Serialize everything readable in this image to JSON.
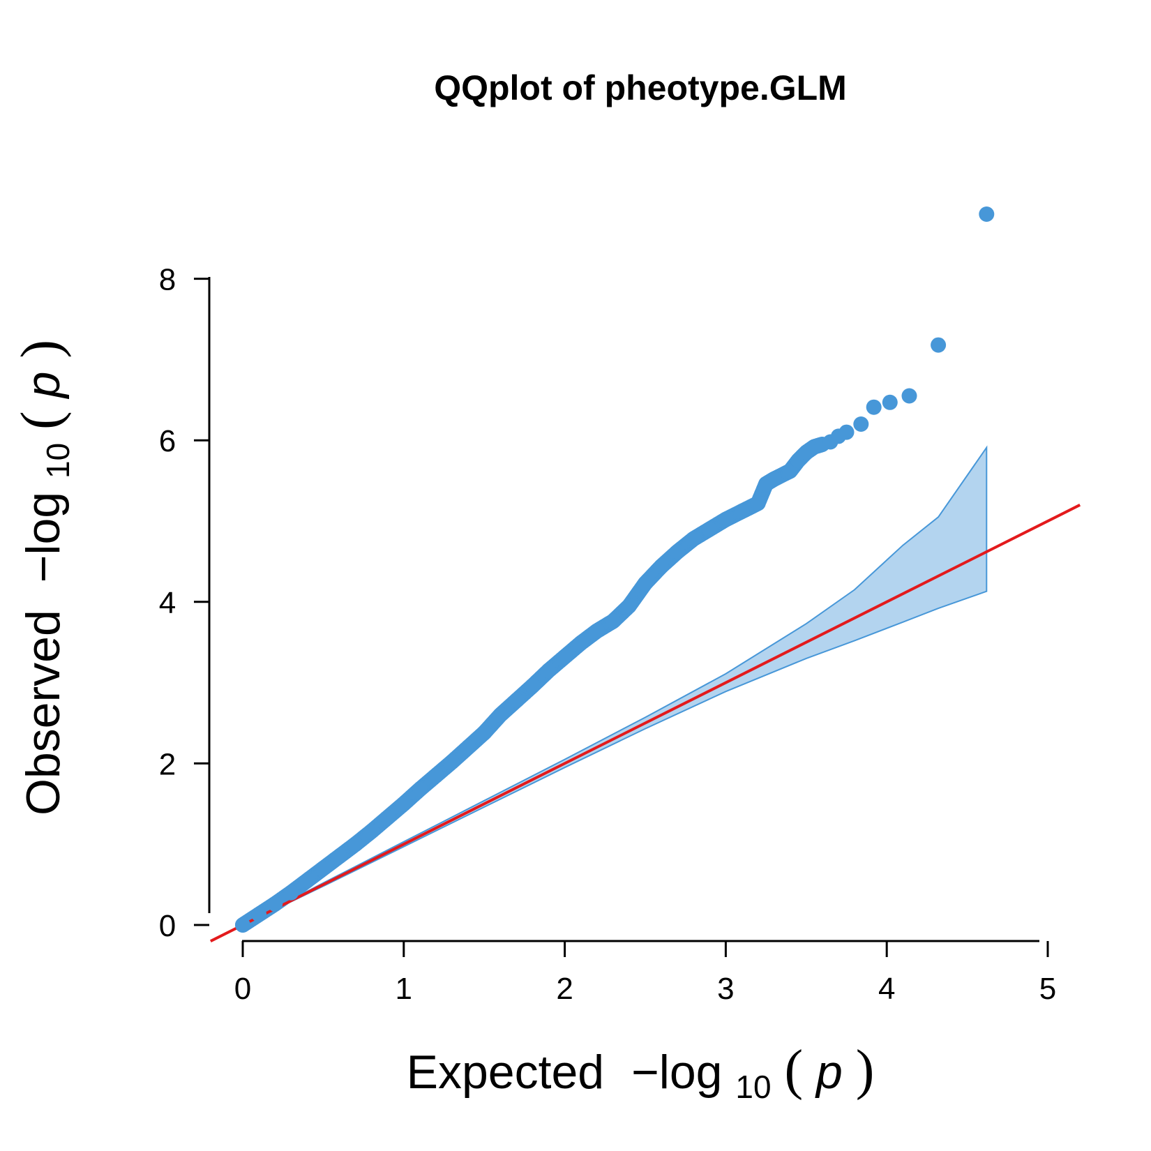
{
  "chart_data": {
    "type": "scatter",
    "title": "QQplot of pheotype.GLM",
    "xlabel": {
      "prefix": "Expected",
      "fn": "−log",
      "sub": "10",
      "open": "(",
      "var": "p",
      "close": ")"
    },
    "ylabel": {
      "prefix": "Observed",
      "fn": "−log",
      "sub": "10",
      "open": "(",
      "var": "p",
      "close": ")"
    },
    "xlim": [
      0,
      5
    ],
    "ylim": [
      0,
      8
    ],
    "xticks": [
      "0",
      "1",
      "2",
      "3",
      "4",
      "5"
    ],
    "yticks": [
      "0",
      "2",
      "4",
      "6",
      "8"
    ],
    "colors": {
      "points": "#4797D8",
      "band_fill": "#B3D4EF",
      "band_stroke": "#4797D8",
      "reference": "#E31A1C"
    },
    "reference_line": {
      "slope": 1,
      "intercept": 0
    },
    "confidence_band": {
      "x": [
        0,
        0.5,
        1.0,
        1.5,
        2.0,
        2.5,
        3.0,
        3.5,
        3.8,
        4.1,
        4.32,
        4.62
      ],
      "upper": [
        0,
        0.52,
        1.03,
        1.54,
        2.05,
        2.57,
        3.11,
        3.73,
        4.15,
        4.7,
        5.05,
        5.91
      ],
      "lower": [
        0,
        0.48,
        0.97,
        1.46,
        1.95,
        2.43,
        2.89,
        3.3,
        3.52,
        3.75,
        3.92,
        4.13
      ]
    },
    "points": {
      "x": [
        0.0,
        0.1,
        0.2,
        0.3,
        0.4,
        0.5,
        0.6,
        0.7,
        0.8,
        0.9,
        1.0,
        1.1,
        1.2,
        1.3,
        1.4,
        1.5,
        1.6,
        1.7,
        1.8,
        1.9,
        2.0,
        2.1,
        2.2,
        2.3,
        2.4,
        2.5,
        2.6,
        2.7,
        2.8,
        2.9,
        3.0,
        3.1,
        3.2,
        3.25,
        3.3,
        3.4,
        3.45,
        3.5,
        3.55,
        3.6,
        3.65,
        3.7,
        3.75,
        3.84,
        3.92,
        4.02,
        4.14,
        4.32,
        4.62
      ],
      "y": [
        0.0,
        0.13,
        0.26,
        0.4,
        0.55,
        0.7,
        0.85,
        1.0,
        1.16,
        1.33,
        1.5,
        1.68,
        1.85,
        2.02,
        2.2,
        2.38,
        2.6,
        2.78,
        2.96,
        3.15,
        3.32,
        3.49,
        3.64,
        3.76,
        3.95,
        4.23,
        4.44,
        4.62,
        4.78,
        4.9,
        5.02,
        5.12,
        5.22,
        5.46,
        5.52,
        5.62,
        5.75,
        5.85,
        5.92,
        5.95,
        5.98,
        6.05,
        6.1,
        6.2,
        6.41,
        6.47,
        6.55,
        7.18,
        8.8
      ]
    }
  }
}
